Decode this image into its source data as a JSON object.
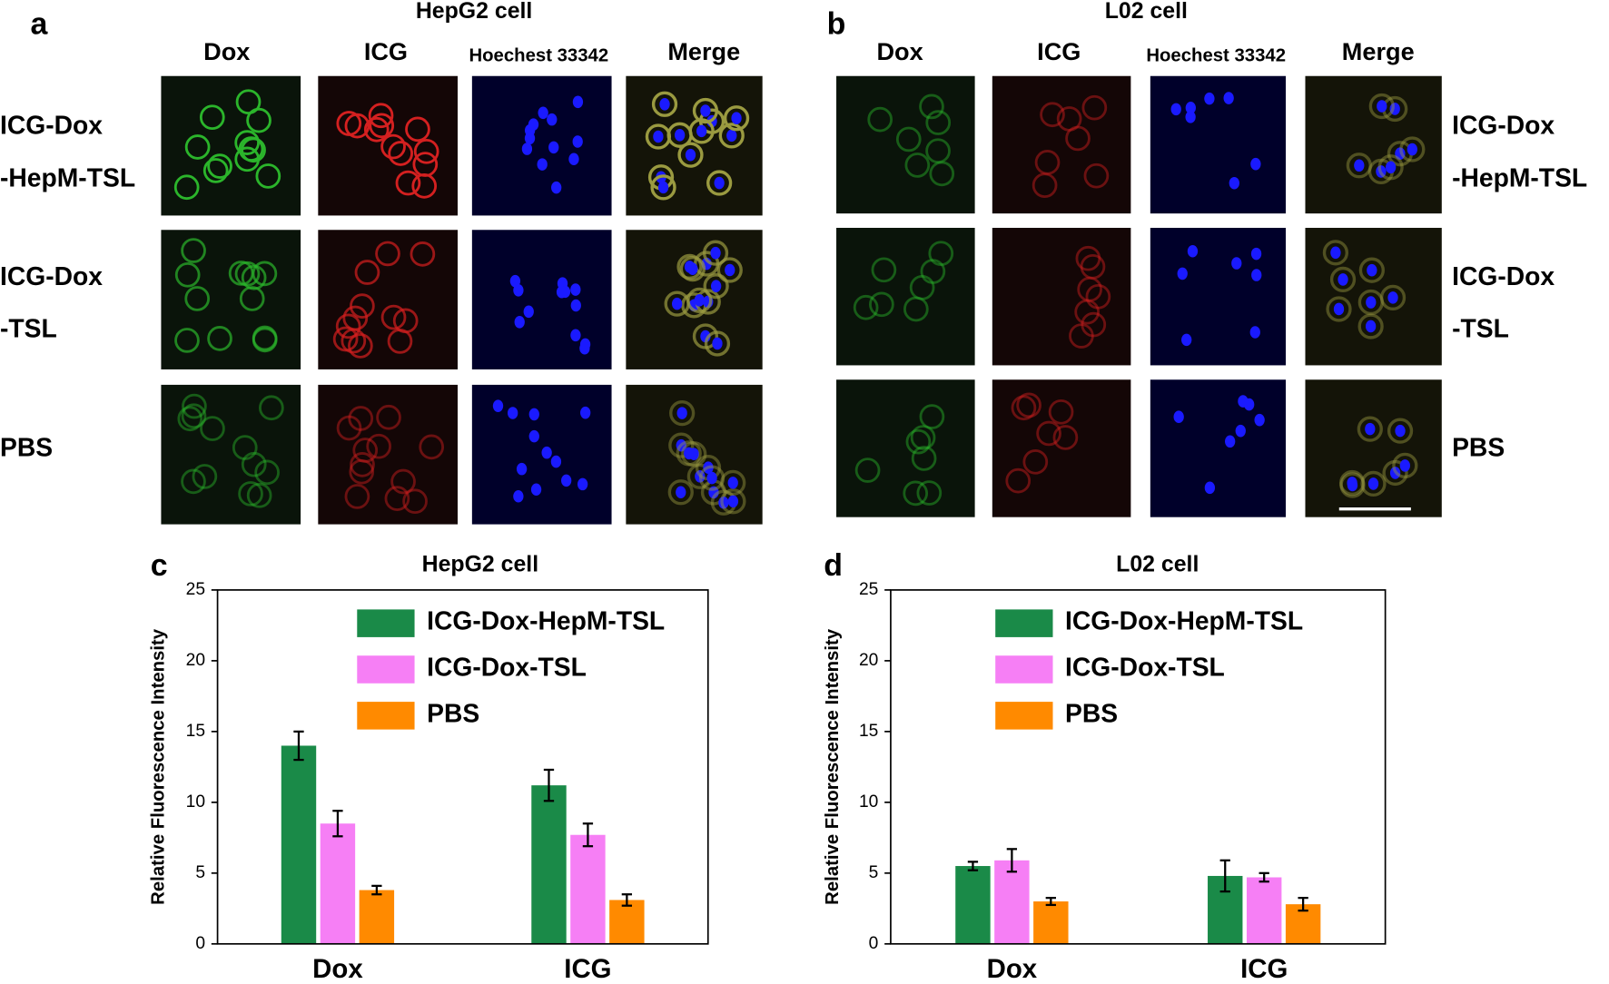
{
  "panels": [
    {
      "letter": "a",
      "title": "HepG2 cell",
      "columns": [
        "Dox",
        "ICG",
        "Hoechest 33342",
        "Merge"
      ],
      "rows": [
        [
          "ICG-Dox",
          "-HepM-TSL"
        ],
        [
          "ICG-Dox",
          "-TSL"
        ],
        [
          "PBS"
        ]
      ]
    },
    {
      "letter": "b",
      "title": "L02 cell",
      "columns": [
        "Dox",
        "ICG",
        "Hoechest 33342",
        "Merge"
      ],
      "rows": [
        [
          "ICG-Dox",
          "-HepM-TSL"
        ],
        [
          "ICG-Dox",
          "-TSL"
        ],
        [
          "PBS"
        ]
      ]
    }
  ],
  "chart_data": [
    {
      "type": "bar",
      "letter": "c",
      "title": "HepG2 cell",
      "ylabel": "Relative Fluorescence Intensity",
      "categories": [
        "Dox",
        "ICG"
      ],
      "ylim": [
        0,
        25
      ],
      "yticks": [
        0,
        5,
        10,
        15,
        20,
        25
      ],
      "legend": "upper right",
      "series": [
        {
          "name": "ICG-Dox-HepM-TSL",
          "color": "#1a8a48",
          "values": [
            14,
            11.2
          ],
          "errors": [
            1,
            1.1
          ]
        },
        {
          "name": "ICG-Dox-TSL",
          "color": "#f67ff5",
          "values": [
            8.5,
            7.7
          ],
          "errors": [
            0.9,
            0.8
          ]
        },
        {
          "name": "PBS",
          "color": "#ff8a00",
          "values": [
            3.8,
            3.1
          ],
          "errors": [
            0.3,
            0.4
          ]
        }
      ]
    },
    {
      "type": "bar",
      "letter": "d",
      "title": "L02 cell",
      "ylabel": "Relative Fluorescence Intensity",
      "categories": [
        "Dox",
        "ICG"
      ],
      "ylim": [
        0,
        25
      ],
      "yticks": [
        0,
        5,
        10,
        15,
        20,
        25
      ],
      "legend": "upper right",
      "series": [
        {
          "name": "ICG-Dox-HepM-TSL",
          "color": "#1a8a48",
          "values": [
            5.5,
            4.8
          ],
          "errors": [
            0.3,
            1.1
          ]
        },
        {
          "name": "ICG-Dox-TSL",
          "color": "#f67ff5",
          "values": [
            5.9,
            4.7
          ],
          "errors": [
            0.8,
            0.3
          ]
        },
        {
          "name": "PBS",
          "color": "#ff8a00",
          "values": [
            3.0,
            2.8
          ],
          "errors": [
            0.25,
            0.45
          ]
        }
      ]
    }
  ]
}
